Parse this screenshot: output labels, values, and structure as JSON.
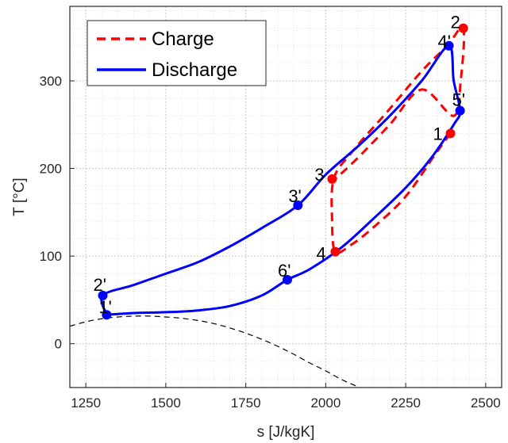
{
  "chart_data": {
    "type": "line",
    "xlabel": "s [J/kgK]",
    "ylabel": "T [°C]",
    "xlim": [
      1200,
      2550
    ],
    "ylim": [
      -50,
      385
    ],
    "xticks": [
      1250,
      1500,
      1750,
      2000,
      2250,
      2500
    ],
    "yticks": [
      0,
      100,
      200,
      300
    ],
    "grid": true,
    "legend_placement": "top-left",
    "series": [
      {
        "name": "Charge",
        "color": "#ff0000",
        "style": "dashed",
        "x": [
          2390,
          2340,
          2250,
          2150,
          2080,
          2030,
          2020,
          2025,
          2080,
          2200,
          2300,
          2380,
          2430,
          2422,
          2400,
          2300,
          2200,
          2100,
          2030
        ],
        "y": [
          240,
          215,
          168,
          133,
          113,
          105,
          140,
          188,
          218,
          268,
          311,
          340,
          360,
          300,
          260,
          290,
          250,
          212,
          188
        ],
        "markers": [
          {
            "x": 2390,
            "y": 240,
            "label": "1"
          },
          {
            "x": 2430,
            "y": 360,
            "label": "2"
          },
          {
            "x": 2020,
            "y": 188,
            "label": "3"
          },
          {
            "x": 2030,
            "y": 105,
            "label": "4"
          }
        ]
      },
      {
        "name": "Discharge",
        "color": "#0000ff",
        "style": "solid",
        "x": [
          1315,
          1400,
          1500,
          1600,
          1700,
          1800,
          1880,
          1950,
          2050,
          2150,
          2250,
          2330,
          2400,
          2420,
          2400,
          2385,
          2300,
          2200,
          2100,
          2000,
          1913,
          1800,
          1700,
          1600,
          1500,
          1400,
          1303,
          1315
        ],
        "y": [
          33,
          35,
          36,
          38,
          43,
          55,
          73,
          85,
          110,
          143,
          178,
          212,
          250,
          266,
          300,
          340,
          300,
          260,
          225,
          193,
          158,
          132,
          111,
          93,
          80,
          67,
          55,
          33
        ],
        "markers": [
          {
            "x": 1315,
            "y": 33,
            "label": "1'"
          },
          {
            "x": 1303,
            "y": 55,
            "label": "2'"
          },
          {
            "x": 1913,
            "y": 158,
            "label": "3'"
          },
          {
            "x": 2385,
            "y": 340,
            "label": "4'"
          },
          {
            "x": 2420,
            "y": 266,
            "label": "5'"
          },
          {
            "x": 1880,
            "y": 73,
            "label": "6'"
          }
        ]
      }
    ],
    "reference_curve": {
      "color": "#000000",
      "style": "dashed",
      "x": [
        1200,
        1250,
        1300,
        1350,
        1400,
        1450,
        1500,
        1550,
        1600,
        1650,
        1700,
        1750,
        1800,
        1850,
        1900,
        1950,
        2000,
        2050,
        2100,
        2120
      ],
      "y": [
        20,
        25,
        28.5,
        30.5,
        31.5,
        31.5,
        30.5,
        29,
        26.5,
        23,
        18,
        12,
        5,
        -3,
        -12,
        -22,
        -31,
        -41,
        -49,
        -52
      ]
    }
  }
}
